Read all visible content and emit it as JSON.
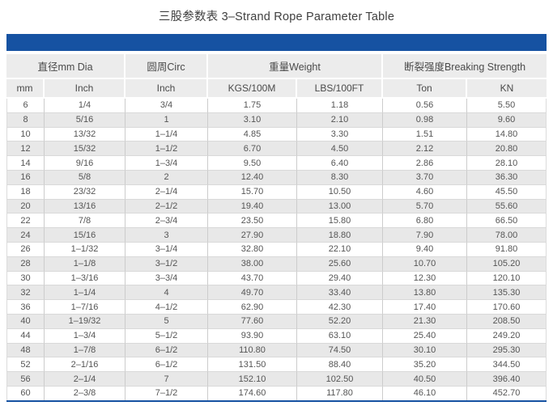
{
  "page": {
    "title": "三股参数表 3–Strand Rope Parameter Table"
  },
  "colors": {
    "accent_blue": "#1652a2",
    "header_bg": "#ececec",
    "alt_row_bg": "#e8e8e8",
    "title_text": "#3f3f3f",
    "cell_text": "#555555"
  },
  "chart_data": {
    "type": "table",
    "title": "三股参数表 3–Strand Rope Parameter Table",
    "column_groups": [
      {
        "label": "直径mm Dia",
        "span": 2
      },
      {
        "label": "圆周Circ",
        "span": 1
      },
      {
        "label": "重量Weight",
        "span": 2
      },
      {
        "label": "断裂强度Breaking Strength",
        "span": 2
      }
    ],
    "columns": [
      "mm",
      "Inch",
      "Inch",
      "KGS/100M",
      "LBS/100FT",
      "Ton",
      "KN"
    ],
    "rows": [
      [
        "6",
        "1/4",
        "3/4",
        "1.75",
        "1.18",
        "0.56",
        "5.50"
      ],
      [
        "8",
        "5/16",
        "1",
        "3.10",
        "2.10",
        "0.98",
        "9.60"
      ],
      [
        "10",
        "13/32",
        "1–1/4",
        "4.85",
        "3.30",
        "1.51",
        "14.80"
      ],
      [
        "12",
        "15/32",
        "1–1/2",
        "6.70",
        "4.50",
        "2.12",
        "20.80"
      ],
      [
        "14",
        "9/16",
        "1–3/4",
        "9.50",
        "6.40",
        "2.86",
        "28.10"
      ],
      [
        "16",
        "5/8",
        "2",
        "12.40",
        "8.30",
        "3.70",
        "36.30"
      ],
      [
        "18",
        "23/32",
        "2–1/4",
        "15.70",
        "10.50",
        "4.60",
        "45.50"
      ],
      [
        "20",
        "13/16",
        "2–1/2",
        "19.40",
        "13.00",
        "5.70",
        "55.60"
      ],
      [
        "22",
        "7/8",
        "2–3/4",
        "23.50",
        "15.80",
        "6.80",
        "66.50"
      ],
      [
        "24",
        "15/16",
        "3",
        "27.90",
        "18.80",
        "7.90",
        "78.00"
      ],
      [
        "26",
        "1–1/32",
        "3–1/4",
        "32.80",
        "22.10",
        "9.40",
        "91.80"
      ],
      [
        "28",
        "1–1/8",
        "3–1/2",
        "38.00",
        "25.60",
        "10.70",
        "105.20"
      ],
      [
        "30",
        "1–3/16",
        "3–3/4",
        "43.70",
        "29.40",
        "12.30",
        "120.10"
      ],
      [
        "32",
        "1–1/4",
        "4",
        "49.70",
        "33.40",
        "13.80",
        "135.30"
      ],
      [
        "36",
        "1–7/16",
        "4–1/2",
        "62.90",
        "42.30",
        "17.40",
        "170.60"
      ],
      [
        "40",
        "1–19/32",
        "5",
        "77.60",
        "52.20",
        "21.30",
        "208.50"
      ],
      [
        "44",
        "1–3/4",
        "5–1/2",
        "93.90",
        "63.10",
        "25.40",
        "249.20"
      ],
      [
        "48",
        "1–7/8",
        "6–1/2",
        "110.80",
        "74.50",
        "30.10",
        "295.30"
      ],
      [
        "52",
        "2–1/16",
        "6–1/2",
        "131.50",
        "88.40",
        "35.20",
        "344.50"
      ],
      [
        "56",
        "2–1/4",
        "7",
        "152.10",
        "102.50",
        "40.50",
        "396.40"
      ],
      [
        "60",
        "2–3/8",
        "7–1/2",
        "174.60",
        "117.80",
        "46.10",
        "452.70"
      ]
    ],
    "layout": {
      "zebra_striping": true,
      "header_rows": 2,
      "accent_bar_top": true,
      "accent_rule_bottom": true
    }
  }
}
